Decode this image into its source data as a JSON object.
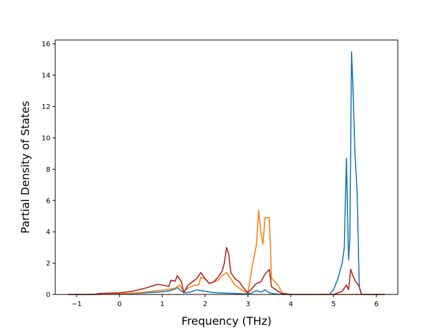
{
  "chart_data": {
    "type": "line",
    "title": "",
    "xlabel": "Frequency (THz)",
    "ylabel": "Partial Density of States",
    "xlim": [
      -1.5,
      6.5
    ],
    "ylim": [
      0,
      16.25
    ],
    "xticks": [
      -1,
      0,
      1,
      2,
      3,
      4,
      5,
      6
    ],
    "yticks": [
      0,
      2,
      4,
      6,
      8,
      10,
      12,
      14,
      16
    ],
    "xtick_labels": [
      "−1",
      "0",
      "1",
      "2",
      "3",
      "4",
      "5",
      "6"
    ],
    "ytick_labels": [
      "0",
      "2",
      "4",
      "6",
      "8",
      "10",
      "12",
      "14",
      "16"
    ],
    "grid": false,
    "legend": "none",
    "series": [
      {
        "color": "#1f77b4",
        "x": [
          -1.2,
          -0.6,
          -0.3,
          0.0,
          0.3,
          0.6,
          0.9,
          1.1,
          1.2,
          1.3,
          1.35,
          1.45,
          1.55,
          1.65,
          1.8,
          2.0,
          2.2,
          2.5,
          2.8,
          3.0,
          3.1,
          3.2,
          3.3,
          3.4,
          3.5,
          3.6,
          3.7,
          3.8,
          4.0,
          4.5,
          4.9,
          5.0,
          5.1,
          5.2,
          5.25,
          5.3,
          5.35,
          5.38,
          5.42,
          5.45,
          5.5,
          5.55,
          5.6,
          5.65,
          6.2
        ],
        "y": [
          0,
          0,
          0.02,
          0.03,
          0.06,
          0.1,
          0.15,
          0.2,
          0.25,
          0.35,
          0.45,
          0.2,
          0.1,
          0.15,
          0.3,
          0.2,
          0.12,
          0.08,
          0.05,
          0.03,
          0.1,
          0.25,
          0.15,
          0.3,
          0.1,
          0.05,
          0.02,
          0,
          0,
          0,
          0,
          0.3,
          1.0,
          2.0,
          3.0,
          8.7,
          2.2,
          3.5,
          15.5,
          13.5,
          9.0,
          6.5,
          0.5,
          0,
          0
        ]
      },
      {
        "color": "#ff7f0e",
        "x": [
          -1.2,
          -0.6,
          -0.3,
          0.0,
          0.3,
          0.6,
          0.9,
          1.1,
          1.3,
          1.4,
          1.5,
          1.6,
          1.75,
          1.85,
          1.9,
          2.0,
          2.1,
          2.2,
          2.3,
          2.4,
          2.5,
          2.6,
          2.7,
          2.8,
          2.9,
          3.0,
          3.1,
          3.2,
          3.25,
          3.3,
          3.35,
          3.4,
          3.45,
          3.5,
          3.55,
          3.6,
          3.7,
          3.8,
          4.0,
          5.0,
          5.5,
          6.2
        ],
        "y": [
          0,
          0,
          0.02,
          0.04,
          0.08,
          0.15,
          0.25,
          0.3,
          0.4,
          0.6,
          0.2,
          0.4,
          0.6,
          0.6,
          1.1,
          1.0,
          0.7,
          0.8,
          0.9,
          1.2,
          1.4,
          1.0,
          0.6,
          0.4,
          0.2,
          0.1,
          1.8,
          3.2,
          5.4,
          4.0,
          3.2,
          4.9,
          4.9,
          4.9,
          1.0,
          0.9,
          0.6,
          0.1,
          0,
          0,
          0,
          0
        ]
      },
      {
        "color": "#b22222",
        "x": [
          -1.2,
          -0.6,
          -0.5,
          -0.3,
          0.0,
          0.3,
          0.6,
          0.9,
          1.0,
          1.1,
          1.15,
          1.2,
          1.3,
          1.35,
          1.45,
          1.5,
          1.6,
          1.7,
          1.8,
          1.85,
          1.9,
          2.0,
          2.1,
          2.2,
          2.3,
          2.4,
          2.45,
          2.5,
          2.55,
          2.6,
          2.7,
          2.8,
          2.9,
          3.0,
          3.1,
          3.2,
          3.3,
          3.4,
          3.5,
          3.55,
          3.6,
          3.7,
          3.8,
          4.0,
          5.0,
          5.2,
          5.3,
          5.35,
          5.4,
          5.45,
          5.5,
          5.6,
          5.65,
          6.2
        ],
        "y": [
          0,
          0,
          0.05,
          0.08,
          0.1,
          0.2,
          0.4,
          0.65,
          0.6,
          0.55,
          0.5,
          0.9,
          0.85,
          1.2,
          0.8,
          0.1,
          0.6,
          0.8,
          1.0,
          1.2,
          1.4,
          1.0,
          0.7,
          0.8,
          1.1,
          1.5,
          2.0,
          3.0,
          2.6,
          1.4,
          1.0,
          0.8,
          0.4,
          0.1,
          0.4,
          0.7,
          0.8,
          1.3,
          1.6,
          0.5,
          0.4,
          0.2,
          0.05,
          0,
          0,
          0.2,
          0.6,
          0.3,
          1.6,
          1.2,
          0.9,
          0.5,
          0,
          0
        ]
      }
    ]
  }
}
